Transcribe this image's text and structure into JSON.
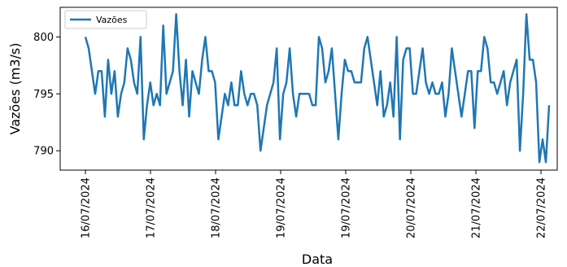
{
  "chart_data": {
    "type": "line",
    "xlabel": "Data",
    "ylabel": "Vazões (m3/s)",
    "xtick_labels": [
      "16/07/2024",
      "17/07/2024",
      "18/07/2024",
      "19/07/2024",
      "19/07/2024",
      "20/07/2024",
      "21/07/2024",
      "22/07/2024"
    ],
    "yticks": [
      790,
      795,
      800
    ],
    "ylim": [
      788.3,
      802.6
    ],
    "grid": false,
    "legend_position": "upper-left",
    "color": "#1f77b4",
    "series": [
      {
        "name": "Vazões",
        "values": [
          800,
          799,
          797,
          795,
          797,
          797,
          793,
          798,
          795,
          797,
          793,
          795,
          796,
          799,
          798,
          796,
          795,
          800,
          791,
          794,
          796,
          794,
          795,
          794,
          801,
          795,
          796,
          797,
          802,
          797,
          794,
          798,
          793,
          797,
          796,
          795,
          798,
          800,
          797,
          797,
          796,
          791,
          793,
          795,
          794,
          796,
          794,
          794,
          797,
          795,
          794,
          795,
          795,
          794,
          790,
          792,
          794,
          795,
          796,
          799,
          791,
          795,
          796,
          799,
          795,
          793,
          795,
          795,
          795,
          795,
          794,
          794,
          800,
          799,
          796,
          797,
          799,
          795,
          791,
          795,
          798,
          797,
          797,
          796,
          796,
          796,
          799,
          800,
          798,
          796,
          794,
          797,
          793,
          794,
          796,
          793,
          800,
          791,
          798,
          799,
          799,
          795,
          795,
          797,
          799,
          796,
          795,
          796,
          795,
          795,
          796,
          793,
          795,
          799,
          797,
          795,
          793,
          795,
          797,
          797,
          792,
          797,
          797,
          800,
          799,
          796,
          796,
          795,
          796,
          797,
          794,
          796,
          797,
          798,
          790,
          795,
          802,
          798,
          798,
          796,
          789,
          791,
          789,
          794
        ]
      }
    ]
  }
}
